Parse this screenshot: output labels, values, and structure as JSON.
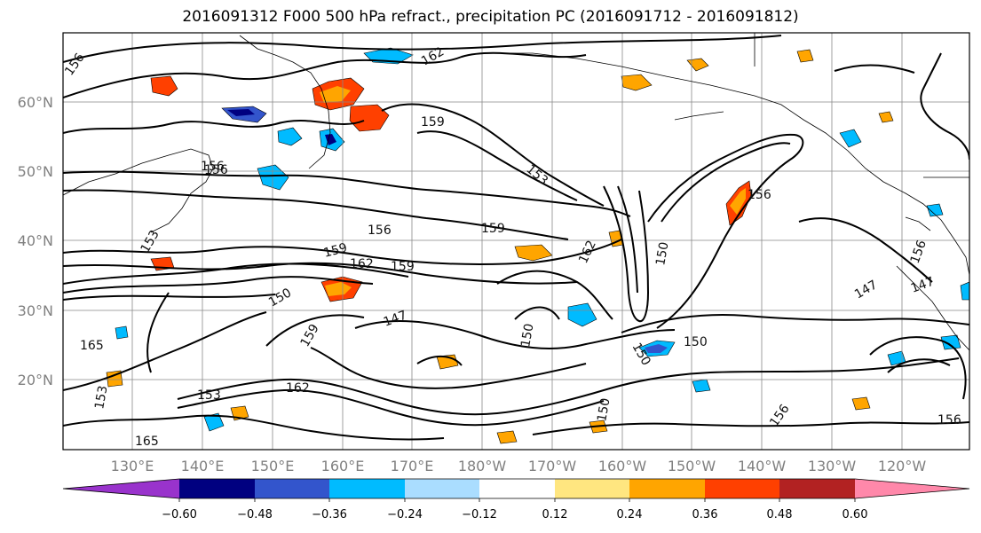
{
  "title": "2016091312 F000 500 hPa refract., precipitation PC (2016091712 - 2016091812)",
  "map": {
    "lat_labels": [
      "60°N",
      "50°N",
      "40°N",
      "30°N",
      "20°N"
    ],
    "lon_labels": [
      "130°E",
      "140°E",
      "150°E",
      "160°E",
      "170°E",
      "180°W",
      "170°W",
      "160°W",
      "150°W",
      "140°W",
      "130°W",
      "120°W"
    ],
    "contour_labels": [
      "156",
      "162",
      "159",
      "156",
      "153",
      "159",
      "162",
      "159",
      "156",
      "156",
      "147",
      "150",
      "150",
      "165",
      "159",
      "153",
      "162",
      "150",
      "156",
      "147",
      "165",
      "156",
      "150",
      "153",
      "147",
      "159",
      "156",
      "156",
      "150",
      "162",
      "153",
      "150"
    ]
  },
  "colorbar": {
    "colors": [
      "#9933cc",
      "#000080",
      "#3355cc",
      "#00bbff",
      "#aaddff",
      "#ffffff",
      "#ffe680",
      "#ffa500",
      "#ff4000",
      "#b22222",
      "#ff88aa"
    ],
    "ticks": [
      "−0.60",
      "−0.48",
      "−0.36",
      "−0.24",
      "−0.12",
      "0.12",
      "0.24",
      "0.36",
      "0.48",
      "0.60"
    ]
  }
}
